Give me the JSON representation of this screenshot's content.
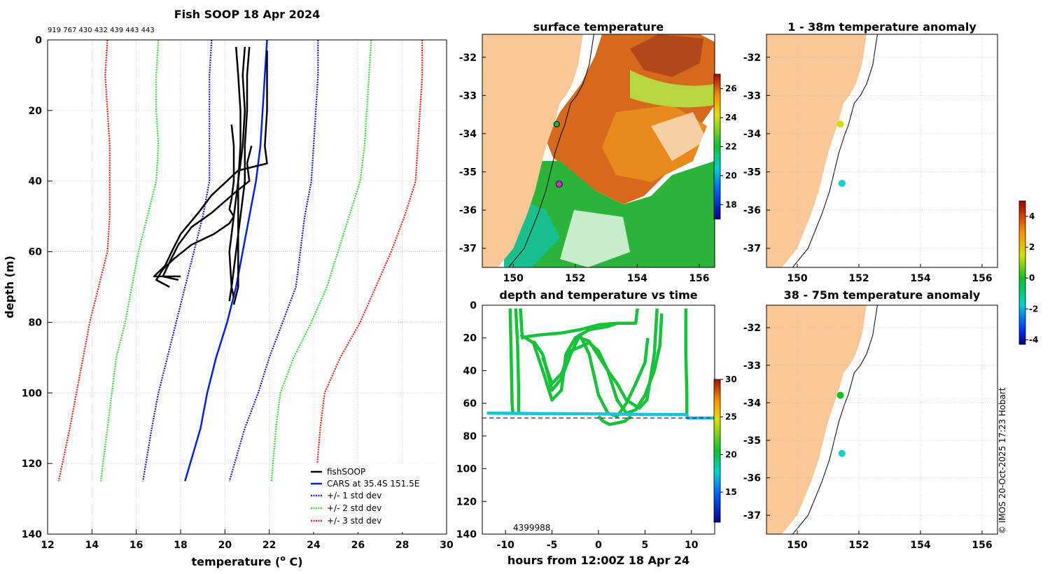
{
  "colors": {
    "land": "#f9c896",
    "grid": "#bdbdbd",
    "cars": "#0022dd",
    "std1": "#1a1acc",
    "std2": "#33dd33",
    "std3": "#ee2211"
  },
  "chart_data": [
    {
      "id": "profile",
      "type": "line",
      "title": "Fish SOOP 18 Apr 2024",
      "subtitle": "919 767 430 432 439 443 443",
      "xlabel": "temperature (",
      "xlabel_sup": "o",
      "xlabel_end": " C)",
      "ylabel": "depth (m)",
      "xlim": [
        12,
        30
      ],
      "ylim": [
        140,
        0
      ],
      "xticks": [
        "12",
        "14",
        "16",
        "18",
        "20",
        "22",
        "24",
        "26",
        "28",
        "30"
      ],
      "yticks": [
        "0",
        "20",
        "40",
        "60",
        "80",
        "100",
        "120",
        "140"
      ],
      "legend": [
        "fishSOOP",
        "CARS at 35.4S 151.5E",
        "+/- 1 std dev",
        "+/- 2 std dev",
        "+/- 3 std dev"
      ],
      "depths": [
        0,
        10,
        20,
        30,
        40,
        50,
        60,
        70,
        80,
        90,
        100,
        110,
        125
      ],
      "cars_mean": [
        21.9,
        21.8,
        21.7,
        21.6,
        21.4,
        21.1,
        20.8,
        20.5,
        20.1,
        19.6,
        19.2,
        18.9,
        18.2
      ],
      "std_lower": [
        [
          19.4,
          19.3,
          19.3,
          19.3,
          19.3,
          19.0,
          18.6,
          18.2,
          17.8,
          17.4,
          17.0,
          16.7,
          16.3
        ],
        [
          17.0,
          16.9,
          16.9,
          17.0,
          16.9,
          16.5,
          16.1,
          15.8,
          15.5,
          15.1,
          14.9,
          14.7,
          14.4
        ],
        [
          14.7,
          14.6,
          14.7,
          14.8,
          14.8,
          14.8,
          14.7,
          14.3,
          13.9,
          13.6,
          13.3,
          13.0,
          12.5
        ]
      ],
      "std_upper": [
        [
          24.2,
          24.2,
          24.1,
          24.0,
          23.9,
          23.6,
          23.4,
          23.2,
          22.6,
          22.0,
          21.5,
          20.9,
          20.2
        ],
        [
          26.6,
          26.5,
          26.4,
          26.3,
          26.1,
          25.6,
          25.1,
          24.6,
          23.9,
          23.1,
          22.5,
          22.3,
          22.1
        ],
        [
          28.9,
          28.9,
          28.8,
          28.7,
          28.6,
          28.1,
          27.5,
          26.8,
          26.1,
          25.2,
          24.5,
          24.3,
          24.1
        ]
      ],
      "fish_casts": [
        {
          "temp": [
            20.5,
            20.6,
            20.7,
            20.7,
            20.6,
            20.6,
            20.6,
            20.6,
            20.4
          ],
          "depth": [
            2,
            10,
            20,
            30,
            40,
            50,
            60,
            70,
            75
          ]
        },
        {
          "temp": [
            20.9,
            20.8,
            20.9,
            20.8,
            20.6,
            20.4,
            20.2,
            20.3,
            20.2
          ],
          "depth": [
            2,
            10,
            20,
            30,
            40,
            50,
            60,
            70,
            74
          ]
        },
        {
          "temp": [
            21.1,
            21.0,
            21.0,
            20.9,
            20.9,
            20.7,
            20.5,
            20.3,
            20.4
          ],
          "depth": [
            2,
            10,
            20,
            30,
            40,
            50,
            60,
            70,
            73
          ]
        },
        {
          "temp": [
            21.9,
            21.9,
            21.9,
            21.8,
            21.9,
            20.6,
            19.4,
            18.8,
            18.0,
            17.6,
            17.3,
            16.8,
            18.0
          ],
          "depth": [
            3,
            10,
            20,
            30,
            35,
            37,
            44,
            49,
            55,
            60,
            64,
            67,
            67
          ]
        },
        {
          "temp": [
            20.3,
            20.4,
            20.4,
            20.3,
            20.2,
            20.4,
            20.2,
            19.5,
            18.5,
            17.7,
            17.2,
            16.9,
            17.5
          ],
          "depth": [
            24,
            30,
            40,
            45,
            48,
            50,
            52,
            55,
            58,
            62,
            65,
            68,
            70
          ]
        },
        {
          "temp": [
            21.2,
            21.0,
            21.1,
            20.5,
            19.4,
            18.5,
            17.9,
            17.5,
            17.2,
            17.9
          ],
          "depth": [
            30,
            35,
            40,
            43,
            49,
            53,
            58,
            63,
            67,
            68
          ]
        }
      ]
    },
    {
      "id": "sst_map",
      "type": "heatmap",
      "title": "surface temperature",
      "xticks": [
        "150",
        "152",
        "154",
        "156"
      ],
      "yticks": [
        "-32",
        "-33",
        "-34",
        "-35",
        "-36",
        "-37"
      ],
      "xlim": [
        149,
        156.5
      ],
      "ylim": [
        -37.5,
        -31.4
      ],
      "colorbar_range": [
        17,
        27
      ],
      "colorbar_ticks": [
        "26",
        "24",
        "22",
        "20",
        "18"
      ],
      "coast_lon": [
        149.5,
        150.0,
        150.25,
        150.45,
        150.7,
        150.85,
        151.0,
        151.2,
        151.3,
        151.4,
        151.5,
        151.7,
        151.9,
        152.1,
        152.25
      ],
      "coast_lat": [
        -37.5,
        -37.0,
        -36.5,
        -36.1,
        -35.5,
        -35.0,
        -34.5,
        -34.0,
        -33.8,
        -33.5,
        -33.2,
        -33.0,
        -32.7,
        -32.2,
        -31.4
      ],
      "stations": [
        {
          "lon": 151.4,
          "lat": -33.75
        },
        {
          "lon": 151.48,
          "lat": -35.32
        }
      ]
    },
    {
      "id": "time_section",
      "type": "scatter",
      "title": "depth and temperature vs time",
      "xlabel": "hours from 12:00Z 18 Apr 24",
      "xlim": [
        -12.5,
        12.5
      ],
      "ylim": [
        140,
        0
      ],
      "xticks": [
        "-10",
        "-5",
        "0",
        "5",
        "10"
      ],
      "yticks": [
        "0",
        "20",
        "40",
        "60",
        "80",
        "100",
        "120",
        "140"
      ],
      "colorbar_range": [
        11,
        30
      ],
      "colorbar_ticks": [
        "30",
        "25",
        "20",
        "15"
      ],
      "overlap_label": "4399988",
      "reference_depth": 69
    },
    {
      "id": "anom_shallow",
      "type": "scatter",
      "title": "1 - 38m temperature anomaly",
      "xticks": [
        "150",
        "152",
        "154",
        "156"
      ],
      "yticks": [
        "-32",
        "-33",
        "-34",
        "-35",
        "-36",
        "-37"
      ],
      "stations": [
        {
          "lon": 151.4,
          "lat": -33.75,
          "anomaly": 1.8
        },
        {
          "lon": 151.45,
          "lat": -35.3,
          "anomaly": -1.2
        }
      ]
    },
    {
      "id": "anom_deep",
      "type": "scatter",
      "title": "38 - 75m temperature anomaly",
      "xticks": [
        "150",
        "152",
        "154",
        "156"
      ],
      "yticks": [
        "-32",
        "-33",
        "-34",
        "-35",
        "-36",
        "-37"
      ],
      "stations": [
        {
          "lon": 151.4,
          "lat": -33.8,
          "anomaly": 0.3
        },
        {
          "lon": 151.45,
          "lat": -35.35,
          "anomaly": -1.0
        }
      ]
    },
    {
      "id": "anom_colorbar",
      "type": "heatmap",
      "colorbar_range": [
        -4.3,
        5
      ],
      "colorbar_ticks": [
        "4",
        "2",
        "0",
        "-2",
        "-4"
      ]
    }
  ],
  "credit": "© IMOS 20-Oct-2025 17:23 Hobart"
}
